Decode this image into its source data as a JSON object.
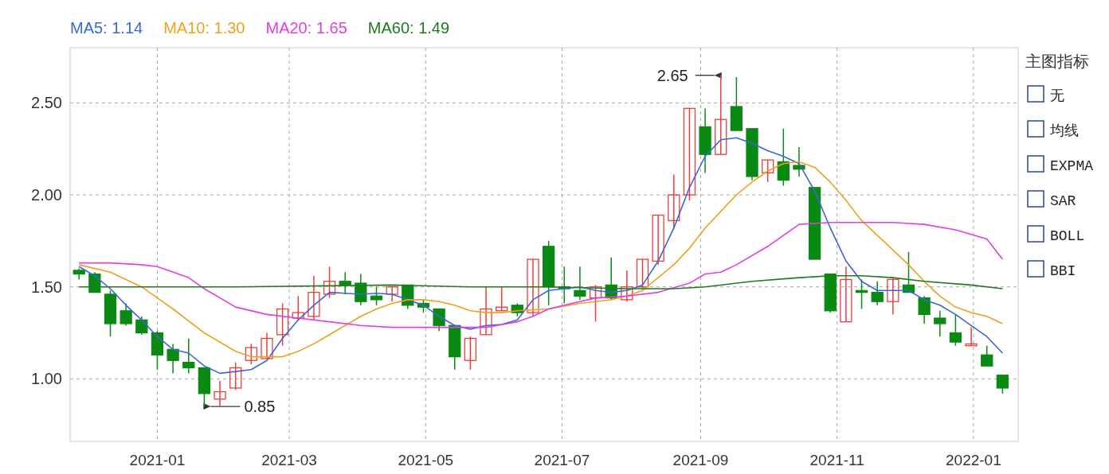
{
  "chart_data": {
    "type": "candlestick",
    "x": [
      "2020-11-27",
      "2020-12-04",
      "2020-12-11",
      "2020-12-18",
      "2020-12-25",
      "2021-01-01",
      "2021-01-08",
      "2021-01-15",
      "2021-01-22",
      "2021-01-29",
      "2021-02-05",
      "2021-02-12",
      "2021-02-19",
      "2021-02-26",
      "2021-03-05",
      "2021-03-12",
      "2021-03-19",
      "2021-03-26",
      "2021-04-02",
      "2021-04-09",
      "2021-04-16",
      "2021-04-23",
      "2021-04-30",
      "2021-05-07",
      "2021-05-14",
      "2021-05-21",
      "2021-05-28",
      "2021-06-04",
      "2021-06-11",
      "2021-06-18",
      "2021-06-25",
      "2021-07-02",
      "2021-07-09",
      "2021-07-16",
      "2021-07-23",
      "2021-07-30",
      "2021-08-06",
      "2021-08-13",
      "2021-08-20",
      "2021-08-27",
      "2021-09-03",
      "2021-09-10",
      "2021-09-17",
      "2021-09-24",
      "2021-10-01",
      "2021-10-08",
      "2021-10-15",
      "2021-10-22",
      "2021-10-29",
      "2021-11-05",
      "2021-11-12",
      "2021-11-19",
      "2021-11-26",
      "2021-12-03",
      "2021-12-10",
      "2021-12-17",
      "2021-12-24",
      "2021-12-31",
      "2022-01-07",
      "2022-01-14"
    ],
    "ohlc": [
      [
        1.59,
        1.6,
        1.54,
        1.57
      ],
      [
        1.57,
        1.58,
        1.47,
        1.47
      ],
      [
        1.46,
        1.48,
        1.23,
        1.3
      ],
      [
        1.37,
        1.41,
        1.29,
        1.3
      ],
      [
        1.32,
        1.34,
        1.24,
        1.25
      ],
      [
        1.25,
        1.26,
        1.05,
        1.13
      ],
      [
        1.16,
        1.19,
        1.03,
        1.1
      ],
      [
        1.09,
        1.22,
        1.03,
        1.06
      ],
      [
        1.06,
        1.06,
        0.85,
        0.92
      ],
      [
        0.89,
        0.99,
        0.85,
        0.93
      ],
      [
        0.95,
        1.09,
        0.94,
        1.06
      ],
      [
        1.1,
        1.19,
        1.08,
        1.17
      ],
      [
        1.11,
        1.25,
        1.11,
        1.22
      ],
      [
        1.24,
        1.41,
        1.18,
        1.38
      ],
      [
        1.33,
        1.45,
        1.32,
        1.36
      ],
      [
        1.34,
        1.56,
        1.32,
        1.47
      ],
      [
        1.46,
        1.61,
        1.44,
        1.53
      ],
      [
        1.53,
        1.58,
        1.46,
        1.51
      ],
      [
        1.52,
        1.57,
        1.4,
        1.42
      ],
      [
        1.45,
        1.5,
        1.4,
        1.43
      ],
      [
        1.46,
        1.5,
        1.42,
        1.5
      ],
      [
        1.51,
        1.51,
        1.38,
        1.4
      ],
      [
        1.41,
        1.43,
        1.36,
        1.39
      ],
      [
        1.38,
        1.38,
        1.26,
        1.29
      ],
      [
        1.29,
        1.29,
        1.05,
        1.12
      ],
      [
        1.1,
        1.23,
        1.05,
        1.22
      ],
      [
        1.24,
        1.5,
        1.24,
        1.38
      ],
      [
        1.37,
        1.5,
        1.37,
        1.39
      ],
      [
        1.4,
        1.41,
        1.34,
        1.36
      ],
      [
        1.36,
        1.65,
        1.34,
        1.65
      ],
      [
        1.72,
        1.75,
        1.4,
        1.5
      ],
      [
        1.5,
        1.61,
        1.41,
        1.49
      ],
      [
        1.48,
        1.61,
        1.43,
        1.45
      ],
      [
        1.44,
        1.51,
        1.31,
        1.5
      ],
      [
        1.51,
        1.66,
        1.43,
        1.44
      ],
      [
        1.43,
        1.59,
        1.42,
        1.5
      ],
      [
        1.5,
        1.65,
        1.49,
        1.65
      ],
      [
        1.64,
        1.89,
        1.62,
        1.89
      ],
      [
        1.86,
        2.11,
        1.82,
        2.0
      ],
      [
        2.0,
        2.47,
        1.97,
        2.47
      ],
      [
        2.37,
        2.47,
        2.12,
        2.22
      ],
      [
        2.22,
        2.65,
        2.22,
        2.41
      ],
      [
        2.48,
        2.64,
        2.35,
        2.35
      ],
      [
        2.36,
        2.36,
        2.08,
        2.1
      ],
      [
        2.12,
        2.19,
        2.07,
        2.19
      ],
      [
        2.18,
        2.36,
        2.05,
        2.08
      ],
      [
        2.16,
        2.26,
        2.1,
        2.14
      ],
      [
        2.04,
        2.04,
        1.65,
        1.65
      ],
      [
        1.57,
        1.57,
        1.36,
        1.37
      ],
      [
        1.31,
        1.61,
        1.31,
        1.54
      ],
      [
        1.48,
        1.54,
        1.38,
        1.47
      ],
      [
        1.47,
        1.53,
        1.4,
        1.42
      ],
      [
        1.42,
        1.55,
        1.35,
        1.54
      ],
      [
        1.51,
        1.69,
        1.47,
        1.47
      ],
      [
        1.44,
        1.45,
        1.3,
        1.35
      ],
      [
        1.33,
        1.37,
        1.23,
        1.3
      ],
      [
        1.25,
        1.35,
        1.18,
        1.2
      ],
      [
        1.18,
        1.28,
        1.18,
        1.19
      ],
      [
        1.13,
        1.18,
        1.07,
        1.07
      ],
      [
        1.02,
        1.02,
        0.92,
        0.95
      ]
    ],
    "colors": [
      "#0a8a12",
      "#0a8a12",
      "#0a8a12",
      "#0a8a12",
      "#0a8a12",
      "#0a8a12",
      "#0a8a12",
      "#0a8a12",
      "#0a8a12",
      "#e8413a",
      "#e8413a",
      "#e8413a",
      "#e8413a",
      "#e8413a",
      "#e8413a",
      "#e8413a",
      "#e8413a",
      "#0a8a12",
      "#0a8a12",
      "#0a8a12",
      "#e8413a",
      "#0a8a12",
      "#0a8a12",
      "#0a8a12",
      "#0a8a12",
      "#e8413a",
      "#e8413a",
      "#e8413a",
      "#0a8a12",
      "#e8413a",
      "#0a8a12",
      "#0a8a12",
      "#0a8a12",
      "#e8413a",
      "#0a8a12",
      "#e8413a",
      "#e8413a",
      "#e8413a",
      "#e8413a",
      "#e8413a",
      "#0a8a12",
      "#e8413a",
      "#0a8a12",
      "#0a8a12",
      "#e8413a",
      "#0a8a12",
      "#0a8a12",
      "#0a8a12",
      "#0a8a12",
      "#e8413a",
      "#0a8a12",
      "#0a8a12",
      "#e8413a",
      "#0a8a12",
      "#0a8a12",
      "#0a8a12",
      "#0a8a12",
      "#e8413a",
      "#0a8a12",
      "#0a8a12"
    ],
    "series": [
      {
        "type": "line",
        "name": "MA5: 1.14",
        "color": "#3a66d6",
        "x": [
          "2020-11-27",
          "2020-12-04",
          "2020-12-11",
          "2020-12-18",
          "2020-12-25",
          "2021-01-01",
          "2021-01-08",
          "2021-01-15",
          "2021-01-22",
          "2021-01-29",
          "2021-02-05",
          "2021-02-12",
          "2021-02-19",
          "2021-02-26",
          "2021-03-05",
          "2021-03-12",
          "2021-03-19",
          "2021-03-26",
          "2021-04-02",
          "2021-04-09",
          "2021-04-16",
          "2021-04-23",
          "2021-04-30",
          "2021-05-07",
          "2021-05-14",
          "2021-05-21",
          "2021-05-28",
          "2021-06-04",
          "2021-06-11",
          "2021-06-18",
          "2021-06-25",
          "2021-07-02",
          "2021-07-09",
          "2021-07-16",
          "2021-07-23",
          "2021-07-30",
          "2021-08-06",
          "2021-08-13",
          "2021-08-20",
          "2021-08-27",
          "2021-09-03",
          "2021-09-10",
          "2021-09-17",
          "2021-09-24",
          "2021-10-01",
          "2021-10-08",
          "2021-10-15",
          "2021-10-22",
          "2021-10-29",
          "2021-11-05",
          "2021-11-12",
          "2021-11-19",
          "2021-11-26",
          "2021-12-03",
          "2021-12-10",
          "2021-12-17",
          "2021-12-24",
          "2021-12-31",
          "2022-01-07",
          "2022-01-14"
        ],
        "values": [
          1.61,
          1.56,
          1.49,
          1.4,
          1.32,
          1.23,
          1.16,
          1.14,
          1.07,
          1.03,
          1.04,
          1.05,
          1.1,
          1.22,
          1.32,
          1.4,
          1.47,
          1.465,
          1.46,
          1.465,
          1.46,
          1.43,
          1.4,
          1.34,
          1.29,
          1.27,
          1.29,
          1.295,
          1.32,
          1.43,
          1.48,
          1.49,
          1.5,
          1.48,
          1.47,
          1.48,
          1.51,
          1.64,
          1.82,
          2.04,
          2.21,
          2.3,
          2.31,
          2.28,
          2.24,
          2.21,
          2.17,
          2.02,
          1.82,
          1.64,
          1.53,
          1.48,
          1.48,
          1.48,
          1.43,
          1.4,
          1.35,
          1.29,
          1.23,
          1.14
        ]
      },
      {
        "type": "line",
        "name": "MA10: 1.30",
        "color": "#f0a020",
        "x": [
          "2020-11-27",
          "2020-12-11",
          "2020-12-25",
          "2021-01-01",
          "2021-01-08",
          "2021-01-22",
          "2021-02-05",
          "2021-02-12",
          "2021-02-26",
          "2021-03-05",
          "2021-03-12",
          "2021-03-19",
          "2021-03-26",
          "2021-04-02",
          "2021-04-09",
          "2021-04-16",
          "2021-04-23",
          "2021-04-30",
          "2021-05-07",
          "2021-05-14",
          "2021-05-21",
          "2021-05-28",
          "2021-06-04",
          "2021-06-11",
          "2021-06-25",
          "2021-07-09",
          "2021-07-23",
          "2021-07-30",
          "2021-08-06",
          "2021-08-13",
          "2021-08-20",
          "2021-08-27",
          "2021-09-03",
          "2021-09-10",
          "2021-09-17",
          "2021-09-24",
          "2021-10-01",
          "2021-10-08",
          "2021-10-15",
          "2021-10-22",
          "2021-10-29",
          "2021-11-05",
          "2021-11-12",
          "2021-11-19",
          "2021-11-26",
          "2021-12-03",
          "2021-12-10",
          "2021-12-17",
          "2021-12-24",
          "2021-12-31",
          "2022-01-07",
          "2022-01-14"
        ],
        "values": [
          1.62,
          1.58,
          1.5,
          1.44,
          1.38,
          1.25,
          1.15,
          1.12,
          1.12,
          1.15,
          1.19,
          1.24,
          1.29,
          1.34,
          1.38,
          1.41,
          1.43,
          1.43,
          1.42,
          1.4,
          1.37,
          1.36,
          1.36,
          1.37,
          1.38,
          1.41,
          1.43,
          1.45,
          1.48,
          1.55,
          1.62,
          1.71,
          1.82,
          1.91,
          2.0,
          2.07,
          2.13,
          2.17,
          2.18,
          2.15,
          2.07,
          1.97,
          1.86,
          1.78,
          1.7,
          1.62,
          1.53,
          1.45,
          1.39,
          1.36,
          1.34,
          1.3
        ]
      },
      {
        "type": "line",
        "name": "MA20: 1.65",
        "color": "#e040e0",
        "x": [
          "2020-11-27",
          "2020-12-11",
          "2020-12-25",
          "2021-01-01",
          "2021-01-15",
          "2021-01-22",
          "2021-02-05",
          "2021-02-19",
          "2021-03-05",
          "2021-03-19",
          "2021-04-02",
          "2021-04-16",
          "2021-04-30",
          "2021-05-14",
          "2021-05-28",
          "2021-06-11",
          "2021-06-18",
          "2021-06-25",
          "2021-07-02",
          "2021-07-16",
          "2021-07-30",
          "2021-08-13",
          "2021-08-27",
          "2021-09-03",
          "2021-09-10",
          "2021-09-17",
          "2021-10-01",
          "2021-10-15",
          "2021-10-29",
          "2021-11-12",
          "2021-11-26",
          "2021-12-10",
          "2021-12-24",
          "2022-01-07",
          "2022-01-14"
        ],
        "values": [
          1.63,
          1.63,
          1.62,
          1.61,
          1.55,
          1.49,
          1.39,
          1.35,
          1.33,
          1.31,
          1.29,
          1.28,
          1.28,
          1.28,
          1.28,
          1.31,
          1.34,
          1.38,
          1.4,
          1.44,
          1.45,
          1.47,
          1.52,
          1.57,
          1.58,
          1.62,
          1.72,
          1.84,
          1.85,
          1.85,
          1.85,
          1.84,
          1.81,
          1.76,
          1.65
        ]
      },
      {
        "type": "line",
        "name": "MA60: 1.49",
        "color": "#1f7a1f",
        "x": [
          "2020-11-27",
          "2021-02-05",
          "2021-04-16",
          "2021-05-21",
          "2021-06-25",
          "2021-07-30",
          "2021-08-20",
          "2021-09-03",
          "2021-09-24",
          "2021-10-15",
          "2021-10-29",
          "2021-11-12",
          "2021-11-26",
          "2021-12-10",
          "2021-12-31",
          "2022-01-14"
        ],
        "values": [
          1.5,
          1.5,
          1.51,
          1.5,
          1.5,
          1.49,
          1.49,
          1.5,
          1.53,
          1.55,
          1.56,
          1.56,
          1.55,
          1.53,
          1.51,
          1.49
        ]
      }
    ],
    "xlim": [
      "2020-11-23",
      "2022-01-21"
    ],
    "xticks": [
      "2021-01",
      "2021-03",
      "2021-05",
      "2021-07",
      "2021-09",
      "2021-11",
      "2022-01"
    ],
    "ylim": [
      0.66,
      2.8
    ],
    "yticks": [
      {
        "value": 1,
        "label": "1.00"
      },
      {
        "value": 1.5,
        "label": "1.50"
      },
      {
        "value": 2,
        "label": "2.00"
      },
      {
        "value": 2.5,
        "label": "2.50"
      }
    ],
    "grid": true,
    "legend": "top left",
    "annotations": [
      {
        "text": "2.65",
        "x": "2021-09-10",
        "y": 2.65
      },
      {
        "text": "0.85",
        "x": "2021-01-22",
        "y": 0.85
      },
      "主图指标",
      "无",
      "均线",
      "EXPMA",
      "SAR",
      "BOLL",
      "BBI"
    ]
  }
}
